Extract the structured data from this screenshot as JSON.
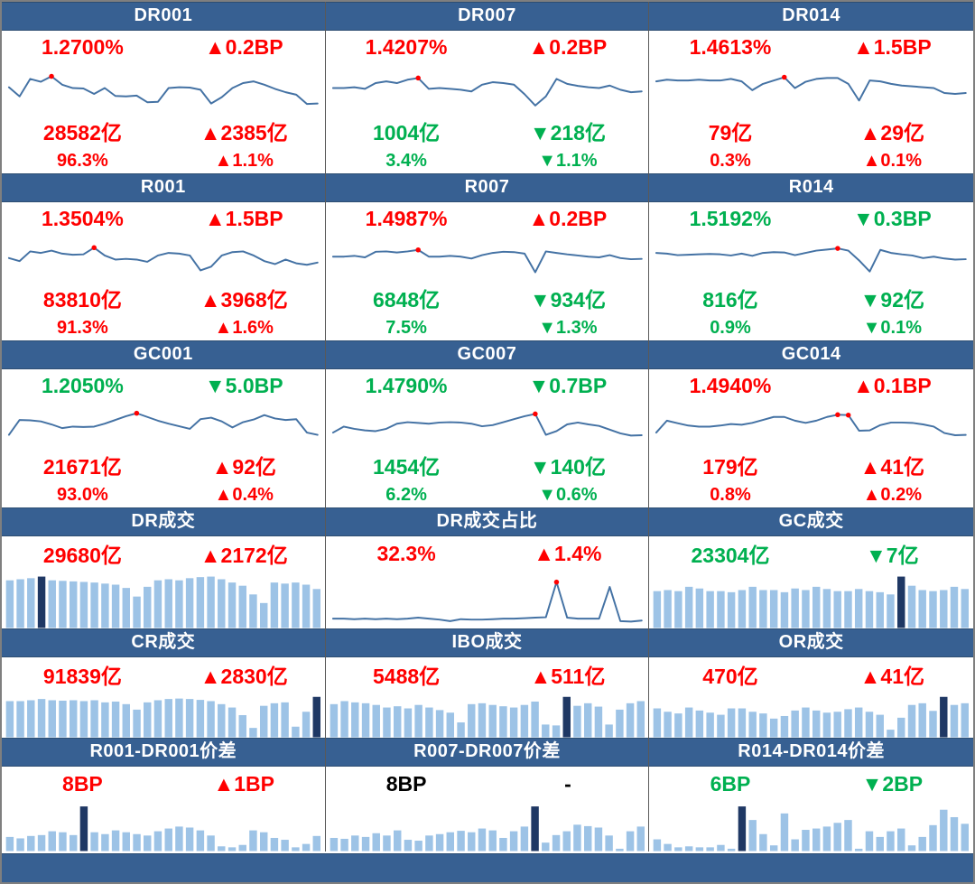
{
  "colors": {
    "header_bg": "#376092",
    "footer_bg": "#376092",
    "line": "#4472A4",
    "bar_light": "#9DC3E6",
    "bar_dark": "#1F3864",
    "marker": "#FF0000",
    "red": "#FF0000",
    "green": "#00B050",
    "black": "#000000"
  },
  "chart_data": [
    {
      "id": "dr001",
      "title": "DR001",
      "type": "line",
      "row_group": "rate",
      "stats": [
        {
          "left": "1.2700%",
          "left_color": "red",
          "right": "▲0.2BP",
          "right_color": "red"
        },
        {
          "left": "28582亿",
          "left_color": "red",
          "right": "▲2385亿",
          "right_color": "red"
        },
        {
          "left": "96.3%",
          "left_color": "red",
          "right": "▲1.1%",
          "right_color": "red"
        }
      ],
      "values_normalized": [
        0.52,
        0.3,
        0.72,
        0.65,
        0.78,
        0.58,
        0.5,
        0.49,
        0.36,
        0.5,
        0.31,
        0.3,
        0.32,
        0.16,
        0.17,
        0.5,
        0.52,
        0.51,
        0.46,
        0.13,
        0.28,
        0.5,
        0.62,
        0.66,
        0.58,
        0.48,
        0.4,
        0.34,
        0.12,
        0.13
      ],
      "marker_indices": [
        4
      ]
    },
    {
      "id": "dr007",
      "title": "DR007",
      "type": "line",
      "row_group": "rate",
      "stats": [
        {
          "left": "1.4207%",
          "left_color": "red",
          "right": "▲0.2BP",
          "right_color": "red"
        },
        {
          "left": "1004亿",
          "left_color": "green",
          "right": "▼218亿",
          "right_color": "green"
        },
        {
          "left": "3.4%",
          "left_color": "green",
          "right": "▼1.1%",
          "right_color": "green"
        }
      ],
      "values_normalized": [
        0.5,
        0.5,
        0.52,
        0.48,
        0.62,
        0.66,
        0.62,
        0.7,
        0.74,
        0.48,
        0.5,
        0.48,
        0.46,
        0.42,
        0.58,
        0.64,
        0.62,
        0.58,
        0.35,
        0.08,
        0.3,
        0.72,
        0.6,
        0.55,
        0.52,
        0.5,
        0.56,
        0.46,
        0.4,
        0.42
      ],
      "marker_indices": [
        8
      ]
    },
    {
      "id": "dr014",
      "title": "DR014",
      "type": "line",
      "row_group": "rate",
      "stats": [
        {
          "left": "1.4613%",
          "left_color": "red",
          "right": "▲1.5BP",
          "right_color": "red"
        },
        {
          "left": "79亿",
          "left_color": "red",
          "right": "▲29亿",
          "right_color": "red"
        },
        {
          "left": "0.3%",
          "left_color": "red",
          "right": "▲0.1%",
          "right_color": "red"
        }
      ],
      "values_normalized": [
        0.66,
        0.7,
        0.68,
        0.68,
        0.7,
        0.68,
        0.68,
        0.72,
        0.66,
        0.45,
        0.6,
        0.68,
        0.76,
        0.5,
        0.65,
        0.72,
        0.74,
        0.74,
        0.6,
        0.2,
        0.68,
        0.66,
        0.6,
        0.56,
        0.54,
        0.52,
        0.5,
        0.38,
        0.36,
        0.38
      ],
      "marker_indices": [
        12
      ]
    },
    {
      "id": "r001",
      "title": "R001",
      "type": "line",
      "row_group": "rate",
      "stats": [
        {
          "left": "1.3504%",
          "left_color": "red",
          "right": "▲1.5BP",
          "right_color": "red"
        },
        {
          "left": "83810亿",
          "left_color": "red",
          "right": "▲3968亿",
          "right_color": "red"
        },
        {
          "left": "91.3%",
          "left_color": "red",
          "right": "▲1.6%",
          "right_color": "red"
        }
      ],
      "values_normalized": [
        0.48,
        0.4,
        0.66,
        0.62,
        0.68,
        0.6,
        0.57,
        0.58,
        0.76,
        0.55,
        0.44,
        0.46,
        0.44,
        0.38,
        0.55,
        0.62,
        0.6,
        0.55,
        0.15,
        0.25,
        0.55,
        0.64,
        0.66,
        0.55,
        0.4,
        0.32,
        0.44,
        0.34,
        0.3,
        0.36
      ],
      "marker_indices": [
        8
      ]
    },
    {
      "id": "r007",
      "title": "R007",
      "type": "line",
      "row_group": "rate",
      "stats": [
        {
          "left": "1.4987%",
          "left_color": "red",
          "right": "▲0.2BP",
          "right_color": "red"
        },
        {
          "left": "6848亿",
          "left_color": "green",
          "right": "▼934亿",
          "right_color": "green"
        },
        {
          "left": "7.5%",
          "left_color": "green",
          "right": "▼1.3%",
          "right_color": "green"
        }
      ],
      "values_normalized": [
        0.52,
        0.52,
        0.54,
        0.5,
        0.65,
        0.66,
        0.63,
        0.66,
        0.7,
        0.52,
        0.52,
        0.54,
        0.52,
        0.47,
        0.56,
        0.62,
        0.65,
        0.64,
        0.6,
        0.1,
        0.66,
        0.62,
        0.58,
        0.55,
        0.52,
        0.5,
        0.56,
        0.48,
        0.45,
        0.46
      ],
      "marker_indices": [
        8
      ]
    },
    {
      "id": "r014",
      "title": "R014",
      "type": "line",
      "row_group": "rate",
      "stats": [
        {
          "left": "1.5192%",
          "left_color": "green",
          "right": "▼0.3BP",
          "right_color": "green"
        },
        {
          "left": "816亿",
          "left_color": "green",
          "right": "▼92亿",
          "right_color": "green"
        },
        {
          "left": "0.9%",
          "left_color": "green",
          "right": "▼0.1%",
          "right_color": "green"
        }
      ],
      "values_normalized": [
        0.62,
        0.6,
        0.56,
        0.57,
        0.58,
        0.59,
        0.58,
        0.55,
        0.6,
        0.54,
        0.62,
        0.64,
        0.63,
        0.56,
        0.62,
        0.68,
        0.71,
        0.74,
        0.68,
        0.42,
        0.12,
        0.7,
        0.62,
        0.58,
        0.55,
        0.48,
        0.52,
        0.47,
        0.44,
        0.45
      ],
      "marker_indices": [
        17
      ]
    },
    {
      "id": "gc001",
      "title": "GC001",
      "type": "line",
      "row_group": "rate",
      "stats": [
        {
          "left": "1.2050%",
          "left_color": "green",
          "right": "▼5.0BP",
          "right_color": "green"
        },
        {
          "left": "21671亿",
          "left_color": "red",
          "right": "▲92亿",
          "right_color": "red"
        },
        {
          "left": "93.0%",
          "left_color": "red",
          "right": "▲0.4%",
          "right_color": "red"
        }
      ],
      "values_normalized": [
        0.22,
        0.62,
        0.61,
        0.58,
        0.5,
        0.4,
        0.44,
        0.43,
        0.44,
        0.52,
        0.62,
        0.72,
        0.8,
        0.7,
        0.6,
        0.52,
        0.45,
        0.38,
        0.64,
        0.68,
        0.58,
        0.42,
        0.56,
        0.63,
        0.75,
        0.66,
        0.62,
        0.64,
        0.28,
        0.22
      ],
      "marker_indices": [
        12
      ]
    },
    {
      "id": "gc007",
      "title": "GC007",
      "type": "line",
      "row_group": "rate",
      "stats": [
        {
          "left": "1.4790%",
          "left_color": "green",
          "right": "▼0.7BP",
          "right_color": "green"
        },
        {
          "left": "1454亿",
          "left_color": "green",
          "right": "▼140亿",
          "right_color": "green"
        },
        {
          "left": "6.2%",
          "left_color": "green",
          "right": "▼0.6%",
          "right_color": "green"
        }
      ],
      "values_normalized": [
        0.28,
        0.44,
        0.38,
        0.34,
        0.32,
        0.38,
        0.52,
        0.56,
        0.54,
        0.52,
        0.55,
        0.56,
        0.55,
        0.52,
        0.45,
        0.48,
        0.56,
        0.64,
        0.72,
        0.78,
        0.22,
        0.32,
        0.5,
        0.55,
        0.5,
        0.46,
        0.36,
        0.26,
        0.2,
        0.21
      ],
      "marker_indices": [
        19
      ]
    },
    {
      "id": "gc014",
      "title": "GC014",
      "type": "line",
      "row_group": "rate",
      "stats": [
        {
          "left": "1.4940%",
          "left_color": "red",
          "right": "▲0.1BP",
          "right_color": "red"
        },
        {
          "left": "179亿",
          "left_color": "red",
          "right": "▲41亿",
          "right_color": "red"
        },
        {
          "left": "0.8%",
          "left_color": "red",
          "right": "▲0.2%",
          "right_color": "red"
        }
      ],
      "values_normalized": [
        0.28,
        0.6,
        0.53,
        0.47,
        0.44,
        0.44,
        0.47,
        0.51,
        0.49,
        0.54,
        0.62,
        0.7,
        0.7,
        0.6,
        0.54,
        0.6,
        0.7,
        0.76,
        0.75,
        0.33,
        0.34,
        0.48,
        0.55,
        0.55,
        0.54,
        0.5,
        0.44,
        0.27,
        0.21,
        0.22
      ],
      "marker_indices": [
        17,
        18
      ]
    },
    {
      "id": "dr-volume",
      "title": "DR成交",
      "type": "bar",
      "row_group": "volume",
      "stats": [
        {
          "left": "29680亿",
          "left_color": "red",
          "right": "▲2172亿",
          "right_color": "red"
        }
      ],
      "values_normalized": [
        0.88,
        0.9,
        0.92,
        0.95,
        0.88,
        0.87,
        0.86,
        0.85,
        0.84,
        0.82,
        0.8,
        0.74,
        0.58,
        0.76,
        0.88,
        0.9,
        0.88,
        0.92,
        0.94,
        0.95,
        0.9,
        0.84,
        0.78,
        0.62,
        0.46,
        0.84,
        0.82,
        0.84,
        0.8,
        0.72
      ],
      "highlight_index": 3
    },
    {
      "id": "dr-share",
      "title": "DR成交占比",
      "type": "line",
      "row_group": "volume",
      "stats": [
        {
          "left": "32.3%",
          "left_color": "red",
          "right": "▲1.4%",
          "right_color": "red"
        }
      ],
      "values_normalized": [
        0.1,
        0.1,
        0.09,
        0.1,
        0.09,
        0.1,
        0.09,
        0.1,
        0.12,
        0.1,
        0.08,
        0.05,
        0.09,
        0.08,
        0.08,
        0.09,
        0.1,
        0.1,
        0.11,
        0.12,
        0.13,
        0.85,
        0.12,
        0.1,
        0.1,
        0.1,
        0.75,
        0.05,
        0.04,
        0.06
      ],
      "marker_indices": [
        21
      ]
    },
    {
      "id": "gc-volume",
      "title": "GC成交",
      "type": "bar",
      "row_group": "volume",
      "stats": [
        {
          "left": "23304亿",
          "left_color": "green",
          "right": "▼7亿",
          "right_color": "green"
        }
      ],
      "values_normalized": [
        0.68,
        0.7,
        0.68,
        0.76,
        0.73,
        0.68,
        0.68,
        0.66,
        0.7,
        0.76,
        0.7,
        0.7,
        0.66,
        0.73,
        0.7,
        0.76,
        0.72,
        0.68,
        0.68,
        0.72,
        0.68,
        0.66,
        0.62,
        0.95,
        0.78,
        0.7,
        0.68,
        0.7,
        0.76,
        0.72
      ],
      "highlight_index": 23
    },
    {
      "id": "cr-volume",
      "title": "CR成交",
      "type": "bar",
      "row_group": "volume",
      "stats": [
        {
          "left": "91839亿",
          "left_color": "red",
          "right": "▲2830亿",
          "right_color": "red"
        }
      ],
      "values_normalized": [
        0.85,
        0.85,
        0.87,
        0.9,
        0.87,
        0.86,
        0.87,
        0.85,
        0.87,
        0.82,
        0.84,
        0.78,
        0.65,
        0.82,
        0.87,
        0.9,
        0.91,
        0.9,
        0.88,
        0.85,
        0.78,
        0.7,
        0.52,
        0.22,
        0.74,
        0.8,
        0.82,
        0.25,
        0.6,
        0.95
      ],
      "highlight_index": 29
    },
    {
      "id": "ibo-volume",
      "title": "IBO成交",
      "type": "bar",
      "row_group": "volume",
      "stats": [
        {
          "left": "5488亿",
          "left_color": "red",
          "right": "▲511亿",
          "right_color": "red"
        }
      ],
      "values_normalized": [
        0.78,
        0.85,
        0.82,
        0.8,
        0.76,
        0.7,
        0.73,
        0.68,
        0.76,
        0.7,
        0.64,
        0.58,
        0.35,
        0.78,
        0.8,
        0.76,
        0.73,
        0.7,
        0.76,
        0.84,
        0.3,
        0.28,
        0.95,
        0.74,
        0.8,
        0.72,
        0.3,
        0.65,
        0.8,
        0.85
      ],
      "highlight_index": 22
    },
    {
      "id": "or-volume",
      "title": "OR成交",
      "type": "bar",
      "row_group": "volume",
      "stats": [
        {
          "left": "470亿",
          "left_color": "red",
          "right": "▲41亿",
          "right_color": "red"
        }
      ],
      "values_normalized": [
        0.68,
        0.6,
        0.56,
        0.7,
        0.63,
        0.58,
        0.53,
        0.68,
        0.68,
        0.6,
        0.56,
        0.44,
        0.5,
        0.63,
        0.7,
        0.63,
        0.58,
        0.6,
        0.66,
        0.7,
        0.6,
        0.53,
        0.18,
        0.46,
        0.76,
        0.8,
        0.62,
        0.95,
        0.76,
        0.8
      ],
      "highlight_index": 27
    },
    {
      "id": "r001-dr001-spread",
      "title": "R001-DR001价差",
      "type": "bar",
      "row_group": "spread",
      "stats": [
        {
          "left": "8BP",
          "left_color": "red",
          "right": "▲1BP",
          "right_color": "red"
        }
      ],
      "values_normalized": [
        0.3,
        0.27,
        0.32,
        0.34,
        0.42,
        0.4,
        0.34,
        0.95,
        0.4,
        0.36,
        0.44,
        0.4,
        0.36,
        0.33,
        0.42,
        0.48,
        0.52,
        0.5,
        0.44,
        0.33,
        0.1,
        0.08,
        0.13,
        0.44,
        0.4,
        0.28,
        0.24,
        0.08,
        0.15,
        0.32
      ],
      "highlight_index": 7
    },
    {
      "id": "r007-dr007-spread",
      "title": "R007-DR007价差",
      "type": "bar",
      "row_group": "spread",
      "stats": [
        {
          "left": "8BP",
          "left_color": "black",
          "right": "-",
          "right_color": "black"
        }
      ],
      "values_normalized": [
        0.28,
        0.26,
        0.33,
        0.3,
        0.38,
        0.33,
        0.44,
        0.24,
        0.22,
        0.33,
        0.36,
        0.4,
        0.43,
        0.4,
        0.48,
        0.44,
        0.28,
        0.42,
        0.52,
        0.95,
        0.18,
        0.34,
        0.42,
        0.56,
        0.53,
        0.5,
        0.33,
        0.05,
        0.42,
        0.52
      ],
      "highlight_index": 19
    },
    {
      "id": "r014-dr014-spread",
      "title": "R014-DR014价差",
      "type": "bar",
      "row_group": "spread",
      "stats": [
        {
          "left": "6BP",
          "left_color": "green",
          "right": "▼2BP",
          "right_color": "green"
        }
      ],
      "values_normalized": [
        0.25,
        0.15,
        0.08,
        0.1,
        0.08,
        0.08,
        0.13,
        0.05,
        0.95,
        0.66,
        0.36,
        0.12,
        0.8,
        0.25,
        0.45,
        0.48,
        0.52,
        0.6,
        0.66,
        0.05,
        0.42,
        0.3,
        0.42,
        0.48,
        0.12,
        0.3,
        0.55,
        0.88,
        0.72,
        0.58
      ],
      "highlight_index": 8
    }
  ]
}
